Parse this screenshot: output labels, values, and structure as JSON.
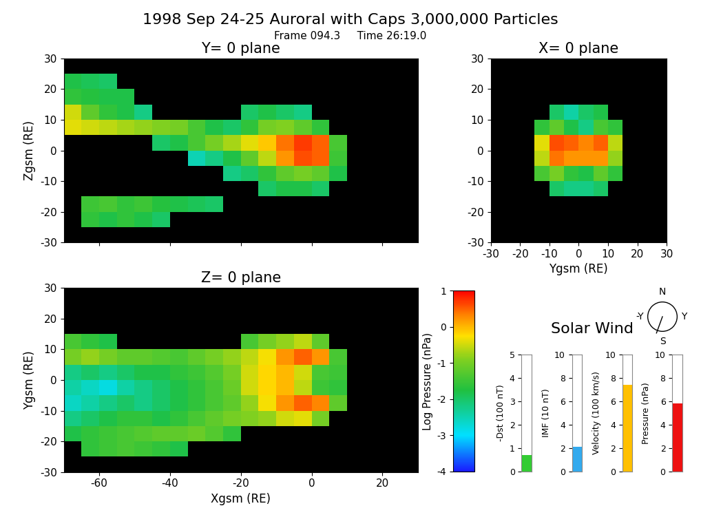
{
  "title": "1998 Sep 24-25 Auroral with Caps 3,000,000 Particles",
  "subtitle": "Frame 094.3     Time 26:19.0",
  "colorbar": {
    "label": "Log Pressure (nPa)",
    "range": [
      -4,
      1
    ],
    "ticks": [
      -4,
      -3,
      -2,
      -1,
      0,
      1
    ]
  },
  "chart_data": [
    {
      "type": "heatmap",
      "title": "Y= 0 plane",
      "ylabel": "Zgsm (RE)",
      "tick_labels": "y",
      "xlim": [
        -70,
        30
      ],
      "ylim": [
        -30,
        30
      ],
      "xticks": [
        -60,
        -40,
        -20,
        0,
        20
      ],
      "yticks": [
        -30,
        -20,
        -10,
        0,
        10,
        20,
        30
      ],
      "x_edges": [
        -70,
        -65,
        -60,
        -55,
        -50,
        -45,
        -40,
        -35,
        -30,
        -25,
        -20,
        -15,
        -10,
        -5,
        0,
        5,
        10
      ],
      "y_edges": [
        -25,
        -20,
        -15,
        -10,
        -5,
        0,
        5,
        10,
        15,
        20,
        25
      ],
      "values": [
        [
          null,
          -1.6,
          -1.8,
          -1.6,
          -1.8,
          -2.0,
          null,
          null,
          null,
          null,
          null,
          null,
          null,
          null,
          null,
          null
        ],
        [
          null,
          -1.5,
          -1.4,
          -1.6,
          -1.5,
          -1.7,
          -1.8,
          -1.9,
          -2.0,
          null,
          null,
          null,
          null,
          null,
          null,
          null
        ],
        [
          null,
          null,
          null,
          null,
          null,
          null,
          null,
          null,
          null,
          null,
          null,
          -2.0,
          -1.8,
          -1.8,
          -2.0,
          null
        ],
        [
          null,
          null,
          null,
          null,
          null,
          null,
          null,
          null,
          null,
          -2.2,
          -2.0,
          -1.6,
          -1.2,
          -1.0,
          -1.2,
          -1.8
        ],
        [
          null,
          null,
          null,
          null,
          null,
          null,
          null,
          -2.5,
          -2.2,
          -1.8,
          -1.2,
          -0.6,
          0.2,
          0.6,
          0.5,
          -1.5
        ],
        [
          null,
          null,
          null,
          null,
          null,
          -2.0,
          -1.8,
          -1.4,
          -1.0,
          -0.7,
          -0.4,
          -0.1,
          0.4,
          0.7,
          0.5,
          -1.4
        ],
        [
          -0.4,
          -0.5,
          -0.6,
          -0.7,
          -0.8,
          -0.9,
          -1.0,
          -1.4,
          -1.8,
          -2.0,
          -1.6,
          -1.0,
          -0.9,
          -1.2,
          -1.6,
          null
        ],
        [
          -0.5,
          -1.2,
          -1.6,
          -1.8,
          -2.2,
          null,
          null,
          null,
          null,
          null,
          -2.0,
          -1.8,
          -2.0,
          -2.2,
          null,
          null
        ],
        [
          -1.6,
          -1.7,
          -1.8,
          -1.8,
          null,
          null,
          null,
          null,
          null,
          null,
          null,
          null,
          null,
          null,
          null,
          null
        ],
        [
          -1.8,
          -1.9,
          -2.0,
          null,
          null,
          null,
          null,
          null,
          null,
          null,
          null,
          null,
          null,
          null,
          null,
          null
        ]
      ]
    },
    {
      "type": "heatmap",
      "title": "X= 0 plane",
      "xlabel": "Ygsm (RE)",
      "xlim": [
        -30,
        30
      ],
      "ylim": [
        -30,
        30
      ],
      "xticks": [
        -30,
        -20,
        -10,
        0,
        10,
        20,
        30
      ],
      "yticks": [
        -30,
        -20,
        -10,
        0,
        10,
        20,
        30
      ],
      "x_edges": [
        -15,
        -10,
        -5,
        0,
        5,
        10,
        15
      ],
      "y_edges": [
        -15,
        -10,
        -5,
        0,
        5,
        10,
        15
      ],
      "values": [
        [
          null,
          -2.0,
          -2.2,
          -2.2,
          -2.0,
          null
        ],
        [
          -1.4,
          -1.0,
          -1.6,
          -1.8,
          -1.2,
          -1.6
        ],
        [
          -0.6,
          0.4,
          0.2,
          0.2,
          0.2,
          -0.8
        ],
        [
          -0.4,
          0.6,
          0.5,
          0.3,
          0.5,
          -0.6
        ],
        [
          -1.6,
          -1.2,
          -1.8,
          -2.2,
          -1.4,
          -1.6
        ],
        [
          null,
          -2.0,
          -2.4,
          -2.0,
          -1.8,
          null
        ]
      ]
    },
    {
      "type": "heatmap",
      "title": "Z= 0 plane",
      "xlabel": "Xgsm (RE)",
      "ylabel": "Ygsm (RE)",
      "xlim": [
        -70,
        30
      ],
      "ylim": [
        -30,
        30
      ],
      "xticks": [
        -60,
        -40,
        -20,
        0,
        20
      ],
      "yticks": [
        -30,
        -20,
        -10,
        0,
        10,
        20,
        30
      ],
      "x_edges": [
        -70,
        -65,
        -60,
        -55,
        -50,
        -45,
        -40,
        -35,
        -30,
        -25,
        -20,
        -15,
        -10,
        -5,
        0,
        5,
        10
      ],
      "y_edges": [
        -25,
        -20,
        -15,
        -10,
        -5,
        0,
        5,
        10,
        15
      ],
      "values": [
        [
          null,
          -1.6,
          -1.5,
          -1.4,
          -1.5,
          -1.6,
          -1.8,
          null,
          null,
          null,
          null,
          null,
          null,
          null,
          null,
          null
        ],
        [
          -1.8,
          -1.6,
          -1.5,
          -1.4,
          -1.3,
          -1.2,
          -1.2,
          -1.1,
          -1.3,
          -1.6,
          null,
          null,
          null,
          null,
          null,
          null
        ],
        [
          -2.2,
          -2.0,
          -1.8,
          -1.6,
          -1.6,
          -1.8,
          -1.6,
          -1.4,
          -1.2,
          -1.0,
          -0.9,
          -0.8,
          -0.5,
          -0.4,
          -1.0,
          null
        ],
        [
          -2.6,
          -2.4,
          -2.2,
          -2.0,
          -2.2,
          -2.0,
          -1.8,
          -1.6,
          -1.4,
          -1.2,
          -0.8,
          -0.3,
          0.2,
          0.5,
          0.3,
          -1.2
        ],
        [
          -2.4,
          -2.6,
          -2.8,
          -2.4,
          -2.2,
          -2.0,
          -1.8,
          -1.6,
          -1.4,
          -1.1,
          -0.5,
          -0.2,
          0.0,
          -0.6,
          -1.5,
          -1.6
        ],
        [
          -2.2,
          -2.0,
          -2.2,
          -2.0,
          -1.8,
          -1.8,
          -1.6,
          -1.5,
          -1.3,
          -1.0,
          -0.5,
          -0.2,
          0.0,
          -0.5,
          -1.4,
          -1.5
        ],
        [
          -1.0,
          -0.8,
          -1.0,
          -1.2,
          -1.2,
          -1.3,
          -1.4,
          -1.2,
          -1.0,
          -0.8,
          -0.6,
          -0.3,
          0.2,
          0.5,
          0.2,
          -1.4
        ],
        [
          -1.4,
          -1.6,
          -1.8,
          null,
          null,
          null,
          null,
          null,
          null,
          null,
          -1.4,
          -1.0,
          -0.8,
          -0.6,
          -1.2,
          null
        ]
      ]
    }
  ],
  "solar_wind": {
    "title": "Solar Wind",
    "gauges": [
      {
        "type": "bar",
        "ylabel": "-Dst (100 nT)",
        "categories": [
          null
        ],
        "values": [
          0.7
        ],
        "ylim": [
          0,
          5
        ],
        "yticks": [
          0,
          1,
          2,
          3,
          4,
          5
        ],
        "color": "#33cc33",
        "tick_labels": "y"
      },
      {
        "type": "bar",
        "ylabel": "IMF (10 nT)",
        "categories": [
          null
        ],
        "values": [
          2.1
        ],
        "ylim": [
          0,
          10
        ],
        "yticks": [
          0,
          2,
          4,
          6,
          8,
          10
        ],
        "color": "#33aaee",
        "tick_labels": "y"
      },
      {
        "type": "bar",
        "ylabel": "Velocity (100 km/s)",
        "categories": [
          null
        ],
        "values": [
          7.4
        ],
        "ylim": [
          0,
          10
        ],
        "yticks": [
          0,
          2,
          4,
          6,
          8,
          10
        ],
        "color": "#ffc000",
        "tick_labels": "y"
      },
      {
        "type": "bar",
        "ylabel": "Pressure (nPa)",
        "categories": [
          null
        ],
        "values": [
          5.8
        ],
        "ylim": [
          0,
          10
        ],
        "yticks": [
          0,
          2,
          4,
          6,
          8,
          10
        ],
        "color": "#ee1111",
        "tick_labels": "y"
      }
    ],
    "compass": {
      "north": "N",
      "south": "S",
      "plus_y": "Y",
      "minus_y": "-Y",
      "imf_clock_angle": 200
    }
  }
}
